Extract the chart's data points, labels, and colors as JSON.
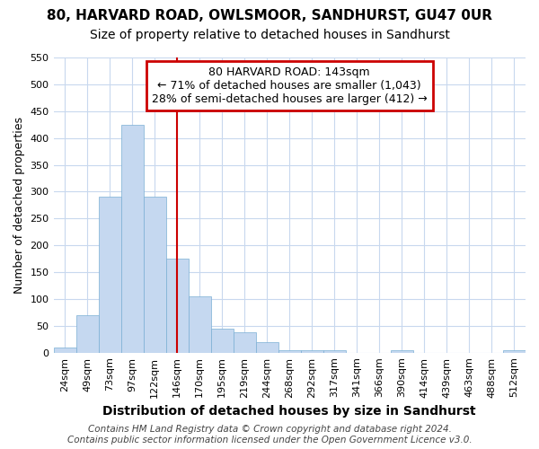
{
  "title": "80, HARVARD ROAD, OWLSMOOR, SANDHURST, GU47 0UR",
  "subtitle": "Size of property relative to detached houses in Sandhurst",
  "xlabel": "Distribution of detached houses by size in Sandhurst",
  "ylabel": "Number of detached properties",
  "categories": [
    "24sqm",
    "49sqm",
    "73sqm",
    "97sqm",
    "122sqm",
    "146sqm",
    "170sqm",
    "195sqm",
    "219sqm",
    "244sqm",
    "268sqm",
    "292sqm",
    "317sqm",
    "341sqm",
    "366sqm",
    "390sqm",
    "414sqm",
    "439sqm",
    "463sqm",
    "488sqm",
    "512sqm"
  ],
  "values": [
    10,
    70,
    290,
    425,
    290,
    175,
    105,
    45,
    38,
    20,
    5,
    5,
    5,
    0,
    0,
    5,
    0,
    0,
    0,
    0,
    5
  ],
  "bar_color": "#c5d8f0",
  "bar_edge_color": "#7bafd4",
  "annotation_text": "80 HARVARD ROAD: 143sqm\n← 71% of detached houses are smaller (1,043)\n28% of semi-detached houses are larger (412) →",
  "annotation_box_facecolor": "#ffffff",
  "annotation_box_edgecolor": "#cc0000",
  "property_line_color": "#cc0000",
  "property_line_x": 5,
  "ylim": [
    0,
    550
  ],
  "yticks": [
    0,
    50,
    100,
    150,
    200,
    250,
    300,
    350,
    400,
    450,
    500,
    550
  ],
  "footer": "Contains HM Land Registry data © Crown copyright and database right 2024.\nContains public sector information licensed under the Open Government Licence v3.0.",
  "background_color": "#ffffff",
  "grid_color": "#c8d8ee",
  "title_fontsize": 11,
  "subtitle_fontsize": 10,
  "xlabel_fontsize": 10,
  "ylabel_fontsize": 9,
  "tick_fontsize": 8,
  "annotation_fontsize": 9,
  "footer_fontsize": 7.5
}
